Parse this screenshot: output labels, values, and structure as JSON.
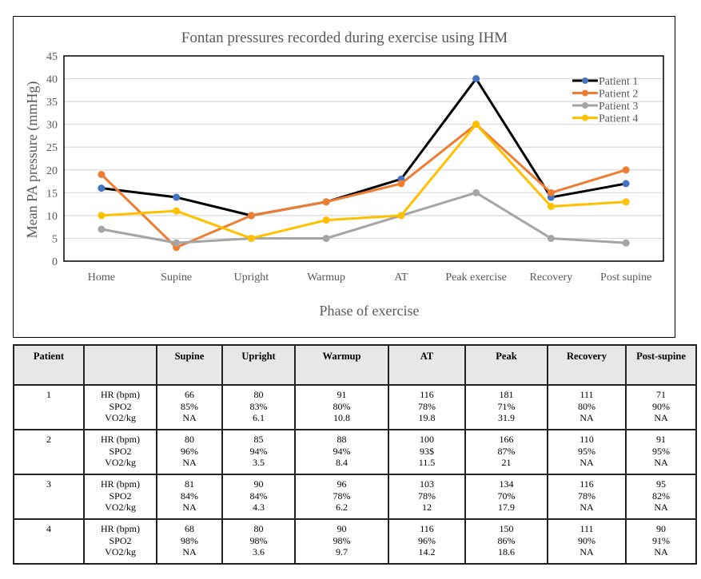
{
  "chart_data": {
    "type": "line",
    "title": "Fontan pressures recorded during exercise using IHM",
    "xlabel": "Phase of exercise",
    "ylabel": "Mean PA pressure (mmHg)",
    "ylim": [
      0,
      45
    ],
    "yticks": [
      0,
      5,
      10,
      15,
      20,
      25,
      30,
      35,
      40,
      45
    ],
    "grid": true,
    "legend_position": "top-right",
    "categories": [
      "Home",
      "Supine",
      "Upright",
      "Warmup",
      "AT",
      "Peak exercise",
      "Recovery",
      "Post supine"
    ],
    "series": [
      {
        "name": "Patient 1",
        "line_color": "#000000",
        "marker_color": "#4472C4",
        "values": [
          16,
          14,
          10,
          13,
          18,
          40,
          14,
          17
        ]
      },
      {
        "name": "Patient 2",
        "line_color": "#ED7D31",
        "marker_color": "#ED7D31",
        "values": [
          19,
          3,
          10,
          13,
          17,
          30,
          15,
          20
        ]
      },
      {
        "name": "Patient 3",
        "line_color": "#A5A5A5",
        "marker_color": "#A5A5A5",
        "values": [
          7,
          4,
          5,
          5,
          10,
          15,
          5,
          4
        ]
      },
      {
        "name": "Patient 4",
        "line_color": "#FFC000",
        "marker_color": "#FFC000",
        "values": [
          10,
          11,
          5,
          9,
          10,
          30,
          12,
          13
        ]
      }
    ]
  },
  "table": {
    "headers": [
      "Patient",
      "",
      "Supine",
      "Upright",
      "Warmup",
      "AT",
      "Peak",
      "Recovery",
      "Post-supine"
    ],
    "metric_labels": [
      "HR (bpm)",
      "SPO2",
      "VO2/kg"
    ],
    "rows": [
      {
        "patient": "1",
        "cells": [
          [
            "66",
            "85%",
            "NA"
          ],
          [
            "80",
            "83%",
            "6.1"
          ],
          [
            "91",
            "80%",
            "10.8"
          ],
          [
            "116",
            "78%",
            "19.8"
          ],
          [
            "181",
            "71%",
            "31.9"
          ],
          [
            "111",
            "80%",
            "NA"
          ],
          [
            "71",
            "90%",
            "NA"
          ]
        ]
      },
      {
        "patient": "2",
        "cells": [
          [
            "80",
            "96%",
            "NA"
          ],
          [
            "85",
            "94%",
            "3.5"
          ],
          [
            "88",
            "94%",
            "8.4"
          ],
          [
            "100",
            "93$",
            "11.5"
          ],
          [
            "166",
            "87%",
            "21"
          ],
          [
            "110",
            "95%",
            "NA"
          ],
          [
            "91",
            "95%",
            "NA"
          ]
        ]
      },
      {
        "patient": "3",
        "cells": [
          [
            "81",
            "84%",
            "NA"
          ],
          [
            "90",
            "84%",
            "4.3"
          ],
          [
            "96",
            "78%",
            "6.2"
          ],
          [
            "103",
            "78%",
            "12"
          ],
          [
            "134",
            "70%",
            "17.9"
          ],
          [
            "116",
            "78%",
            "NA"
          ],
          [
            "95",
            "82%",
            "NA"
          ]
        ]
      },
      {
        "patient": "4",
        "cells": [
          [
            "68",
            "98%",
            "NA"
          ],
          [
            "80",
            "98%",
            "3.6"
          ],
          [
            "90",
            "98%",
            "9.7"
          ],
          [
            "116",
            "96%",
            "14.2"
          ],
          [
            "150",
            "86%",
            "18.6"
          ],
          [
            "111",
            "90%",
            "NA"
          ],
          [
            "90",
            "91%",
            "NA"
          ]
        ]
      }
    ]
  }
}
